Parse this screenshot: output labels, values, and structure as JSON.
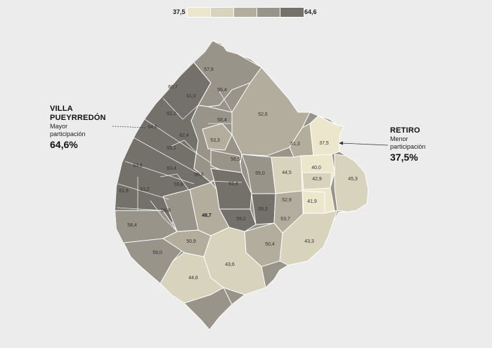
{
  "legend": {
    "min_label": "37,5",
    "max_label": "64,6",
    "colors": [
      "#ece6cc",
      "#d8d3bc",
      "#b3ad9d",
      "#98948a",
      "#74716a"
    ]
  },
  "map": {
    "values": {
      "n1": "57,9",
      "n2": "60,7",
      "n3": "61,0",
      "n4": "56,4",
      "n5": "62,2",
      "n6": "52,6",
      "n7": "64,6",
      "n8": "62,4",
      "n9": "58,4",
      "n10": "63,1",
      "n11": "53,3",
      "n12": "51,3",
      "n13": "37,5",
      "n14": "63,6",
      "n15": "56,5",
      "n16": "63,4",
      "n17": "58,8",
      "n18": "55,0",
      "n19": "44,5",
      "n20": "40,0",
      "n21": "42,9",
      "n22": "45,3",
      "n23": "59,8",
      "n24": "61,4",
      "n25": "61,9",
      "n26": "63,2",
      "n27": "52,9",
      "n28": "41,9",
      "n29": "56,8",
      "n30": "48,7",
      "n31": "59,3",
      "n32": "58,4",
      "n33": "59,2",
      "n34": "53,7",
      "n35": "50,9",
      "n36": "50,4",
      "n37": "43,3",
      "n38": "56,0",
      "n39": "43,6",
      "n40": "44,6"
    }
  },
  "callout_left": {
    "name_line1": "VILLA",
    "name_line2": "PUEYRREDÓN",
    "sub_line1": "Mayor",
    "sub_line2": "participación",
    "value": "64,6%"
  },
  "callout_right": {
    "name": "RETIRO",
    "sub_line1": "Menor",
    "sub_line2": "participación",
    "value": "37,5%"
  }
}
